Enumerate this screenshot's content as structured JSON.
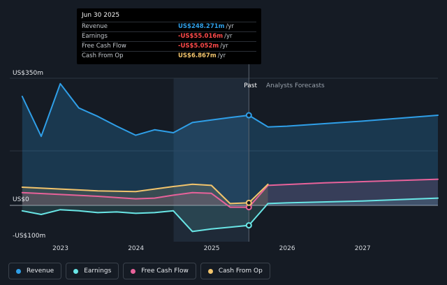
{
  "tooltip": {
    "date": "Jun 30 2025",
    "rows": [
      {
        "label": "Revenue",
        "value": "US$248.271m",
        "unit": "/yr",
        "color": "#2f9fe8"
      },
      {
        "label": "Earnings",
        "value": "-US$55.016m",
        "unit": "/yr",
        "color": "#ff4a4a"
      },
      {
        "label": "Free Cash Flow",
        "value": "-US$5.052m",
        "unit": "/yr",
        "color": "#ff4a4a"
      },
      {
        "label": "Cash From Op",
        "value": "US$6.867m",
        "unit": "/yr",
        "color": "#f2c46c"
      }
    ]
  },
  "period_labels": {
    "past": "Past",
    "forecast": "Analysts Forecasts"
  },
  "legend": [
    {
      "label": "Revenue",
      "color": "#2f9fe8"
    },
    {
      "label": "Earnings",
      "color": "#69e6e6"
    },
    {
      "label": "Free Cash Flow",
      "color": "#e8629a"
    },
    {
      "label": "Cash From Op",
      "color": "#f2c46c"
    }
  ],
  "chart_data": {
    "type": "line",
    "y_unit_labels": {
      "top": "US$350m",
      "zero": "US$0",
      "bottom": "-US$100m"
    },
    "ylim": [
      -100,
      350
    ],
    "xlim": [
      "2022-05-01",
      "2027-12-31"
    ],
    "x_ticks": [
      "2023",
      "2024",
      "2025",
      "2026",
      "2027"
    ],
    "past_end": "2025-06-30",
    "highlight_start": "2024-07-01",
    "series": [
      {
        "name": "Revenue",
        "color": "#2f9fe8",
        "points": [
          [
            "2022-06-30",
            300
          ],
          [
            "2022-09-30",
            190
          ],
          [
            "2022-12-31",
            335
          ],
          [
            "2023-03-31",
            268
          ],
          [
            "2023-06-30",
            245
          ],
          [
            "2023-09-30",
            218
          ],
          [
            "2023-12-31",
            193
          ],
          [
            "2024-03-31",
            208
          ],
          [
            "2024-06-30",
            200
          ],
          [
            "2024-09-30",
            228
          ],
          [
            "2024-12-31",
            235
          ],
          [
            "2025-03-31",
            242
          ],
          [
            "2025-06-30",
            248
          ],
          [
            "2025-09-30",
            216
          ],
          [
            "2025-12-31",
            218
          ],
          [
            "2026-12-31",
            232
          ],
          [
            "2027-12-31",
            248
          ]
        ]
      },
      {
        "name": "Earnings",
        "color": "#69e6e6",
        "points": [
          [
            "2022-06-30",
            -15
          ],
          [
            "2022-09-30",
            -25
          ],
          [
            "2022-12-31",
            -12
          ],
          [
            "2023-03-31",
            -15
          ],
          [
            "2023-06-30",
            -20
          ],
          [
            "2023-09-30",
            -18
          ],
          [
            "2023-12-31",
            -22
          ],
          [
            "2024-03-31",
            -20
          ],
          [
            "2024-06-30",
            -15
          ],
          [
            "2024-09-30",
            -72
          ],
          [
            "2024-12-31",
            -65
          ],
          [
            "2025-03-31",
            -60
          ],
          [
            "2025-06-30",
            -55
          ],
          [
            "2025-09-30",
            5
          ],
          [
            "2025-12-31",
            7
          ],
          [
            "2026-12-31",
            12
          ],
          [
            "2027-12-31",
            20
          ]
        ]
      },
      {
        "name": "Free Cash Flow",
        "color": "#e8629a",
        "points": [
          [
            "2022-06-30",
            35
          ],
          [
            "2022-12-31",
            30
          ],
          [
            "2023-06-30",
            25
          ],
          [
            "2023-12-31",
            18
          ],
          [
            "2024-03-31",
            20
          ],
          [
            "2024-06-30",
            28
          ],
          [
            "2024-09-30",
            35
          ],
          [
            "2024-12-31",
            33
          ],
          [
            "2025-03-31",
            -5
          ],
          [
            "2025-06-30",
            -5
          ],
          [
            "2025-09-30",
            55
          ],
          [
            "2026-06-30",
            62
          ],
          [
            "2027-12-31",
            72
          ]
        ]
      },
      {
        "name": "Cash From Op",
        "color": "#f2c46c",
        "points": [
          [
            "2022-06-30",
            50
          ],
          [
            "2022-12-31",
            45
          ],
          [
            "2023-06-30",
            40
          ],
          [
            "2023-12-31",
            38
          ],
          [
            "2024-03-31",
            45
          ],
          [
            "2024-06-30",
            52
          ],
          [
            "2024-09-30",
            58
          ],
          [
            "2024-12-31",
            55
          ],
          [
            "2025-03-31",
            5
          ],
          [
            "2025-06-30",
            7
          ],
          [
            "2025-09-30",
            58
          ]
        ]
      }
    ]
  }
}
